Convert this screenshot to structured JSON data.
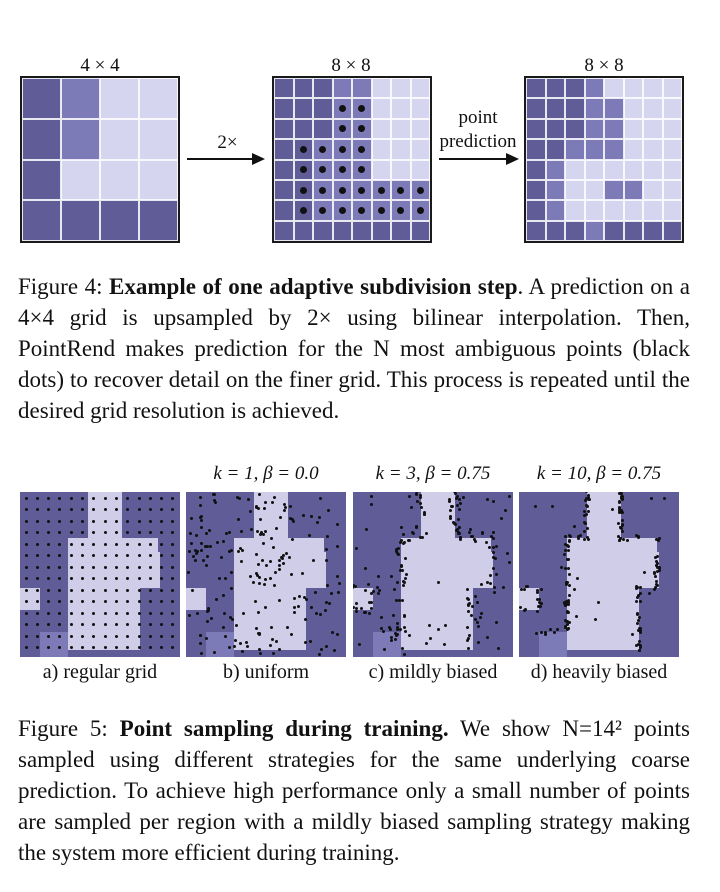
{
  "figure4": {
    "grid1_label": "4 × 4",
    "grid2_label": "8 × 8",
    "grid3_label": "8 × 8",
    "arrow1_label": "2×",
    "arrow2_label_line1": "point",
    "arrow2_label_line2": "prediction",
    "caption_prefix": "Figure 4: ",
    "caption_bold": "Example of one adaptive subdivision step",
    "caption_rest": ". A prediction on a 4×4 grid is upsampled by 2× using bilinear interpolation. Then, PointRend makes prediction for the N most ambiguous points (black dots) to recover detail on the finer grid. This process is repeated until the desired grid resolution is achieved."
  },
  "figure5": {
    "panels": [
      {
        "title": "",
        "label": "a) regular grid"
      },
      {
        "title": "k = 1, β = 0.0",
        "label": "b) uniform"
      },
      {
        "title": "k = 3, β = 0.75",
        "label": "c) mildly biased"
      },
      {
        "title": "k = 10, β = 0.75",
        "label": "d) heavily biased"
      }
    ],
    "caption_prefix": "Figure 5: ",
    "caption_bold": "Point sampling during training.",
    "caption_rest": " We show N=14² points sampled using different strategies for the same underlying coarse prediction. To achieve high performance only a small number of points are sampled per region with a mildly biased sampling strategy making the system more efficient during training."
  },
  "colors": {
    "dark": "#5f5c98",
    "mid": "#7d7ab8",
    "light": "#d6d5f0",
    "lighter": "#cfcde8"
  }
}
